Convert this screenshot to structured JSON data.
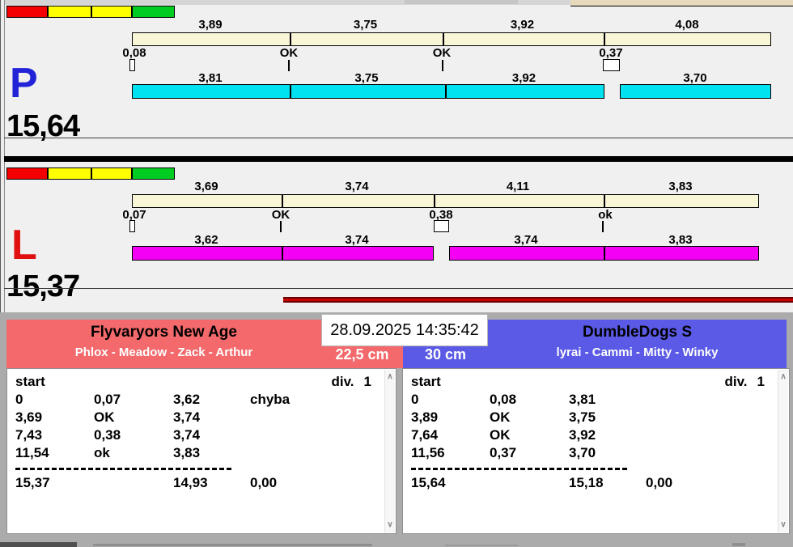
{
  "colors": {
    "background": "#F0F0F0",
    "beige_bar": "#F9F5D7",
    "p_bar": "#00E2EF",
    "l_bar": "#F400F4",
    "p_letter": "#2222D8",
    "l_letter": "#E01010",
    "team_left_bg": "#F4696B",
    "team_right_bg": "#5A5AE6",
    "traffic_red": "#F40000",
    "traffic_yellow": "#FFFF00",
    "traffic_green": "#00CC22",
    "alert_bar": "#C40000"
  },
  "lanes": [
    {
      "letter": "P",
      "total": "15,64",
      "top_splits": [
        "3,89",
        "3,75",
        "3,92",
        "4,08"
      ],
      "sub_labels": [
        "0,08",
        "OK",
        "OK",
        "0,37"
      ],
      "bottom_splits": [
        "3,81",
        "3,75",
        "3,92",
        "3,70"
      ]
    },
    {
      "letter": "L",
      "total": "15,37",
      "top_splits": [
        "3,69",
        "3,74",
        "4,11",
        "3,83"
      ],
      "sub_labels": [
        "0,07",
        "OK",
        "0,38",
        "ok"
      ],
      "bottom_splits": [
        "3,62",
        "3,74",
        "3,74",
        "3,83"
      ]
    }
  ],
  "scoreboard": {
    "datetime": "28.09.2025 14:35:42",
    "scroll_up_icon": "∧",
    "scroll_down_icon": "∨",
    "teams": [
      {
        "name": "Flyvaryors New Age",
        "dogs": "Phlox - Meadow - Zack - Arthur",
        "jump_height": "22,5 cm",
        "table": {
          "header_left": "start",
          "division_label": "div.",
          "division_value": "1",
          "rows": [
            [
              "0",
              "0,07",
              "3,62",
              "chyba"
            ],
            [
              "3,69",
              "OK",
              "3,74",
              ""
            ],
            [
              "7,43",
              "0,38",
              "3,74",
              ""
            ],
            [
              "11,54",
              "ok",
              "3,83",
              ""
            ]
          ],
          "totals": [
            "15,37",
            "14,93",
            "0,00"
          ]
        }
      },
      {
        "name": "DumbleDogs S",
        "dogs": "lyrai - Cammi - Mitty - Winky",
        "jump_height": "30 cm",
        "table": {
          "header_left": "start",
          "division_label": "div.",
          "division_value": "1",
          "rows": [
            [
              "0",
              "0,08",
              "3,81",
              ""
            ],
            [
              "3,89",
              "OK",
              "3,75",
              ""
            ],
            [
              "7,64",
              "OK",
              "3,92",
              ""
            ],
            [
              "11,56",
              "0,37",
              "3,70",
              ""
            ]
          ],
          "totals": [
            "15,64",
            "15,18",
            "0,00"
          ]
        }
      }
    ]
  }
}
